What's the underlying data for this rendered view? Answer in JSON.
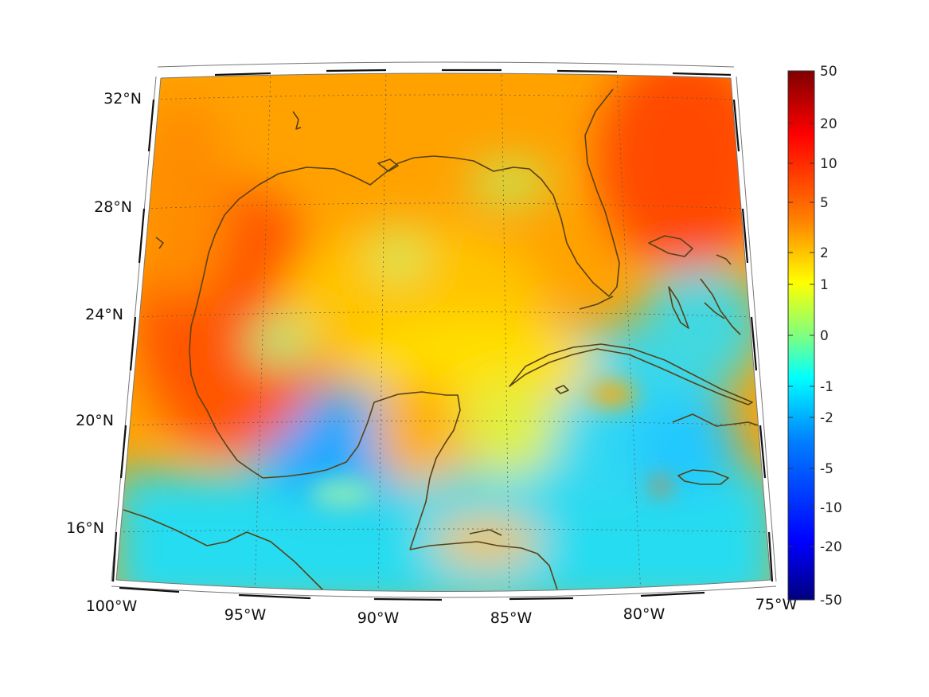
{
  "map": {
    "lat_labels": [
      "32°N",
      "28°N",
      "24°N",
      "20°N",
      "16°N"
    ],
    "lon_labels": [
      "100°W",
      "95°W",
      "90°W",
      "85°W",
      "80°W",
      "75°W"
    ],
    "extent": {
      "lon_min": -100,
      "lon_max": -75,
      "lat_min": 14,
      "lat_max": 33
    },
    "grid": "dotted",
    "coastline_color": "#5a4118",
    "field_description_colors": {
      "warm": "#ff5a00",
      "neutral": "#ffd000",
      "cool": "#00d8ff"
    }
  },
  "colorbar": {
    "tick_labels": [
      "50",
      "20",
      "10",
      "5",
      "2",
      "1",
      "0",
      "-1",
      "-2",
      "-5",
      "-10",
      "-20",
      "-50"
    ],
    "colormap": "jet",
    "stops": [
      "#00007f",
      "#0000ff",
      "#007fff",
      "#00ffff",
      "#7fff7f",
      "#ffff00",
      "#ff7f00",
      "#ff0000",
      "#7f0000"
    ]
  }
}
